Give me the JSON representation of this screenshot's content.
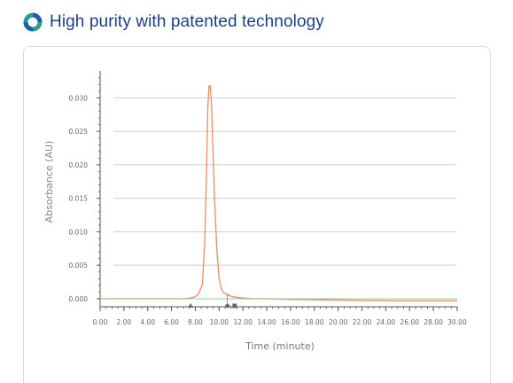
{
  "header": {
    "title": "High purity with patented technology",
    "icon": "ring-logo-icon",
    "title_color": "#1b3f86",
    "icon_colors": [
      "#2a9d8f",
      "#1b5fa8"
    ]
  },
  "chart_data": {
    "type": "line",
    "xlabel": "Time (minute)",
    "ylabel": "Absorbance (AU)",
    "xlim": [
      0,
      30
    ],
    "ylim": [
      -0.0012,
      0.0335
    ],
    "x_ticks": [
      "0.00",
      "2.00",
      "4.00",
      "6.00",
      "8.00",
      "10.00",
      "12.00",
      "14.00",
      "16.00",
      "18.00",
      "20.00",
      "22.00",
      "24.00",
      "26.00",
      "28.00",
      "30.00"
    ],
    "y_ticks": [
      "0.000",
      "0.005",
      "0.010",
      "0.015",
      "0.020",
      "0.025",
      "0.030"
    ],
    "grid": "horizontal",
    "colors": {
      "signal": "#f08a5d",
      "baseline": "#8fd19e",
      "grid": "#cfcfcf",
      "axis": "#555555"
    },
    "series": [
      {
        "style": "signal",
        "x": [
          0,
          2,
          4,
          6,
          7,
          7.6,
          8.0,
          8.3,
          8.6,
          8.8,
          8.95,
          9.05,
          9.15,
          9.25,
          9.35,
          9.45,
          9.6,
          9.8,
          10.0,
          10.2,
          10.4,
          10.6,
          10.8,
          11.1,
          11.5,
          12,
          13,
          14,
          16,
          20,
          25,
          30
        ],
        "y": [
          0.0,
          0.0,
          0.0,
          0.0,
          0.0,
          0.0001,
          0.0003,
          0.0008,
          0.0022,
          0.009,
          0.02,
          0.0285,
          0.0318,
          0.0318,
          0.0295,
          0.024,
          0.0155,
          0.0075,
          0.003,
          0.0014,
          0.0009,
          0.0007,
          0.0005,
          0.0003,
          0.0002,
          0.0001,
          0.0,
          0.0,
          -0.0001,
          -0.0002,
          -0.0003,
          -0.0003
        ]
      },
      {
        "style": "baseline",
        "x": [
          0,
          10,
          20,
          30
        ],
        "y": [
          0.0,
          0.0,
          0.0,
          0.0
        ]
      }
    ],
    "markers": [
      {
        "shape": "triangle",
        "x": 7.6
      },
      {
        "shape": "diamond",
        "x": 10.7
      },
      {
        "shape": "square",
        "x": 11.3
      }
    ]
  }
}
